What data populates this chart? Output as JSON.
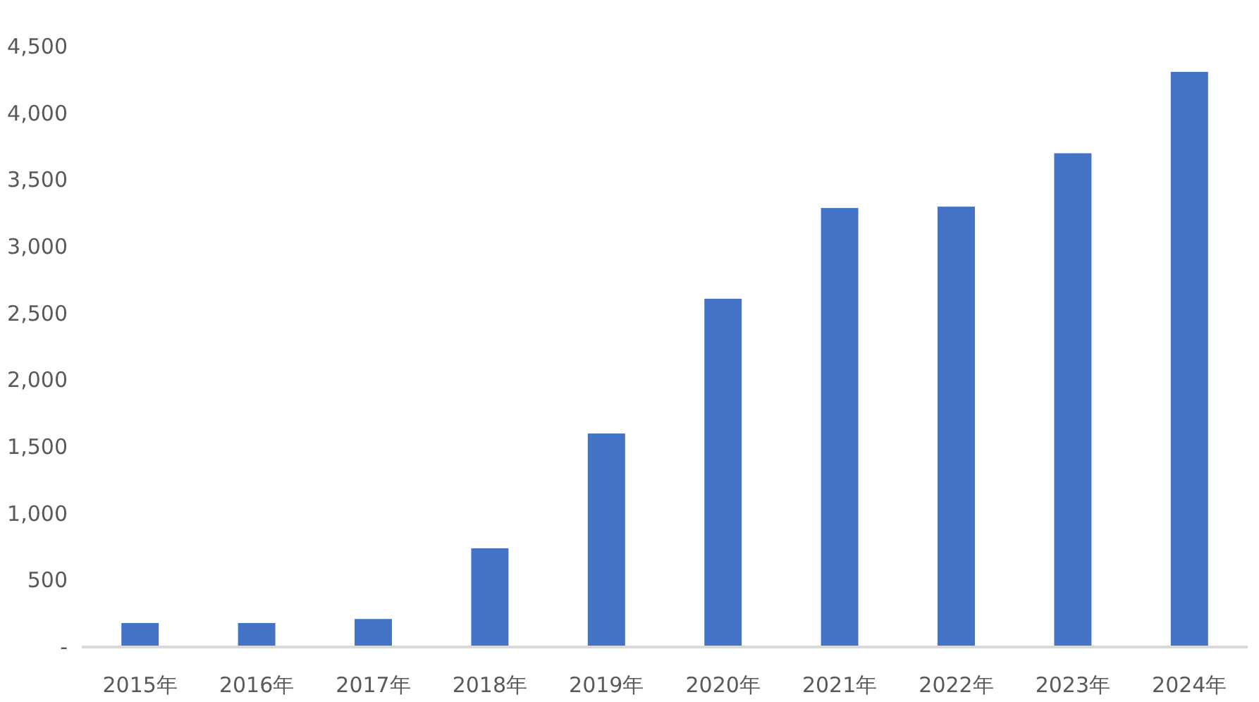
{
  "chart_data": {
    "type": "bar",
    "categories": [
      "2015年",
      "2016年",
      "2017年",
      "2018年",
      "2019年",
      "2020年",
      "2021年",
      "2022年",
      "2023年",
      "2024年"
    ],
    "values": [
      180,
      180,
      210,
      740,
      1600,
      2610,
      3290,
      3300,
      3700,
      4310
    ],
    "color": "#4472c4",
    "ylim": [
      0,
      4500
    ],
    "yticks": [
      {
        "value": 0,
        "label": "-"
      },
      500,
      {
        "value": 1000,
        "label": "1,000"
      },
      {
        "value": 1500,
        "label": "1,500"
      },
      {
        "value": 2000,
        "label": "2,000"
      },
      {
        "value": 2500,
        "label": "2,500"
      },
      {
        "value": 3000,
        "label": "3,000"
      },
      {
        "value": 3500,
        "label": "3,500"
      },
      {
        "value": 4000,
        "label": "4,000"
      },
      {
        "value": 4500,
        "label": "4,500"
      }
    ],
    "grid": false
  }
}
